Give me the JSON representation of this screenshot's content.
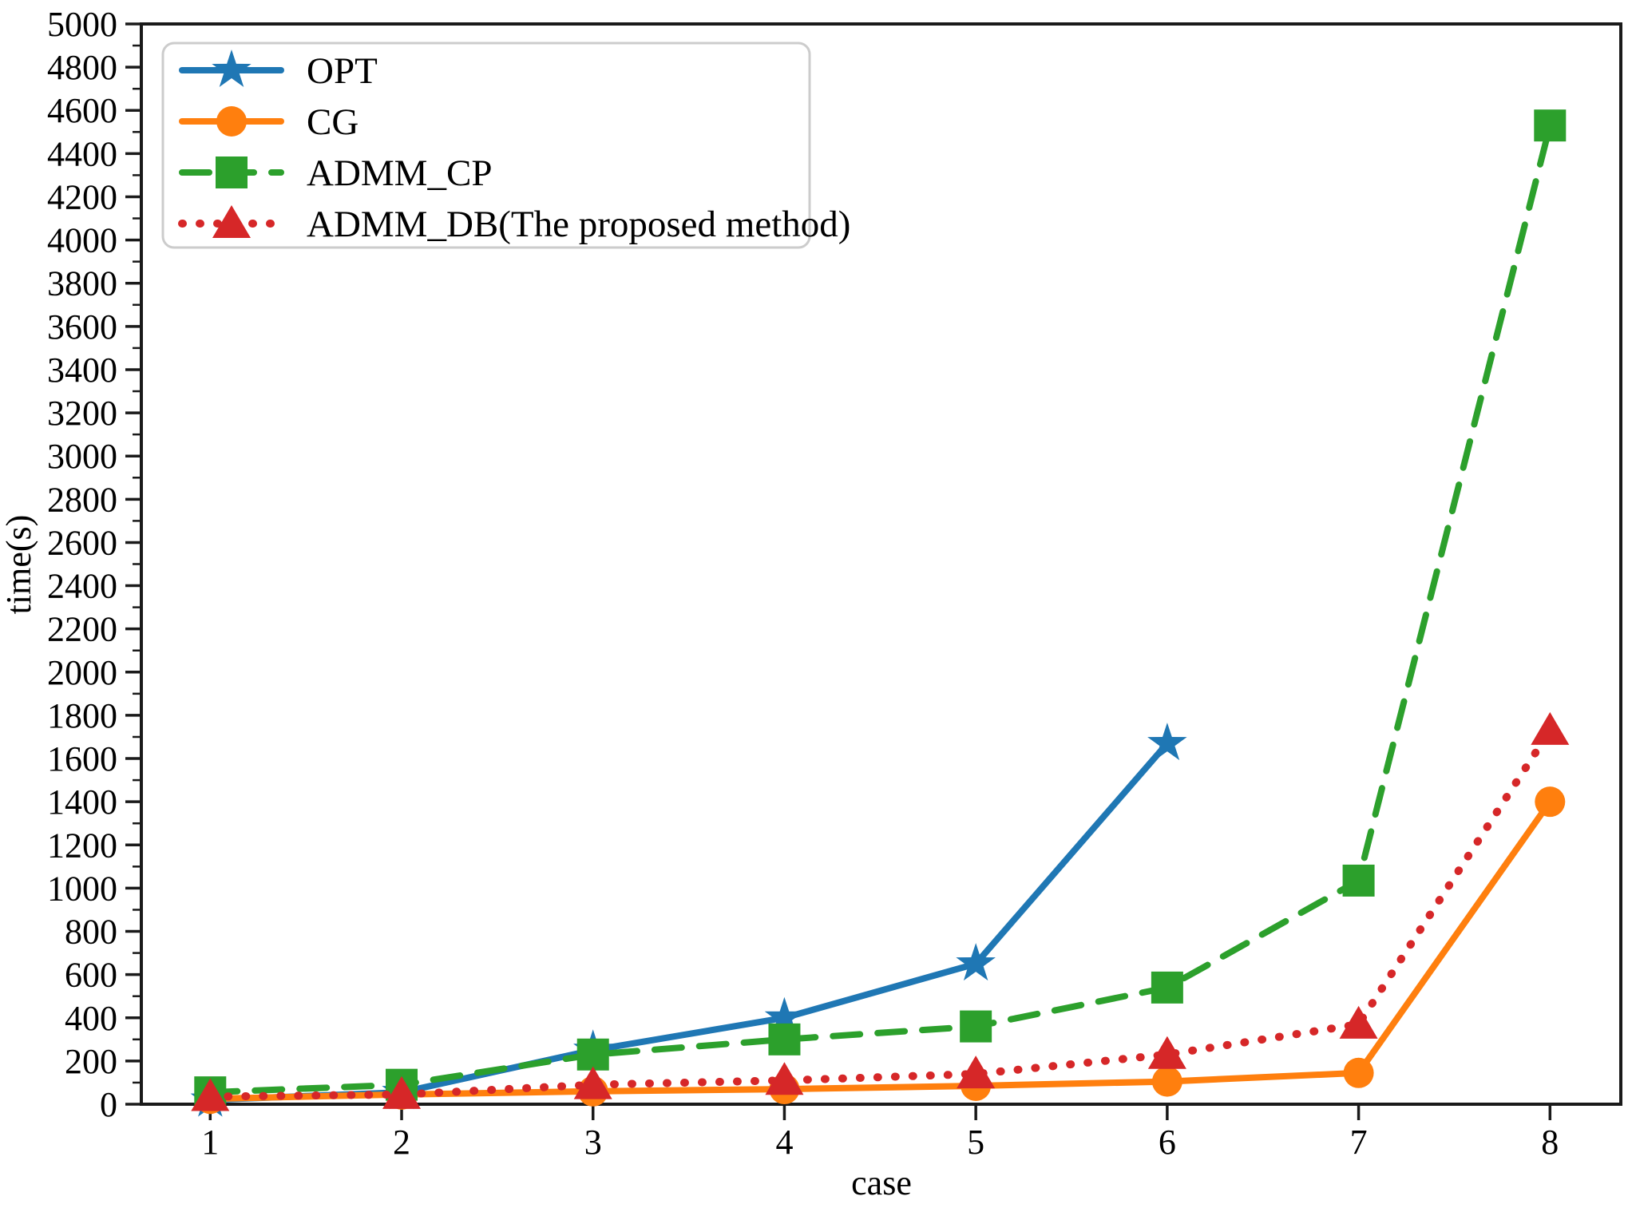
{
  "chart_data": {
    "type": "line",
    "title": "",
    "xlabel": "case",
    "ylabel": "time(s)",
    "x": [
      1,
      2,
      3,
      4,
      5,
      6,
      7,
      8
    ],
    "xlim": [
      0.64,
      8.37
    ],
    "ylim": [
      0,
      5000
    ],
    "x_ticks": [
      1,
      2,
      3,
      4,
      5,
      6,
      7,
      8
    ],
    "y_major_tick_step": 200,
    "y_minor_tick_step": 100,
    "grid": false,
    "legend_position": "upper-left",
    "axis_color": "#1a1a1a",
    "series": [
      {
        "name": "OPT",
        "color": "#1f77b4",
        "linestyle": "solid",
        "marker": "star",
        "values": [
          20,
          55,
          250,
          400,
          650,
          1670,
          null,
          null
        ]
      },
      {
        "name": "CG",
        "color": "#ff7f0e",
        "linestyle": "solid",
        "marker": "circle",
        "values": [
          25,
          45,
          60,
          70,
          85,
          105,
          145,
          1400
        ]
      },
      {
        "name": "ADMM_CP",
        "color": "#2ca02c",
        "linestyle": "dashed",
        "marker": "square",
        "values": [
          55,
          90,
          230,
          300,
          360,
          540,
          1035,
          4530
        ]
      },
      {
        "name": "ADMM_DB(The proposed method)",
        "color": "#d62728",
        "linestyle": "dotted",
        "marker": "triangle",
        "values": [
          35,
          45,
          90,
          110,
          140,
          230,
          370,
          1730
        ]
      }
    ]
  }
}
